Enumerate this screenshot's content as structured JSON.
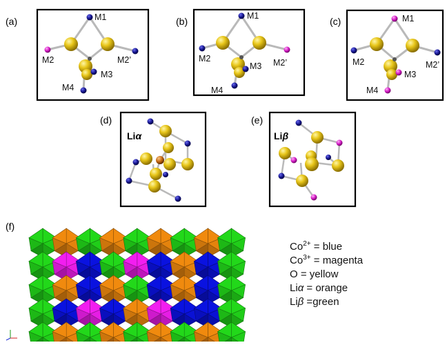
{
  "panels": {
    "a": {
      "tag": "(a)",
      "labels": {
        "m1": "M1",
        "m2": "M2",
        "m2p": "M2’",
        "m3": "M3",
        "m4": "M4"
      }
    },
    "b": {
      "tag": "(b)",
      "labels": {
        "m1": "M1",
        "m2": "M2",
        "m2p": "M2’",
        "m3": "M3",
        "m4": "M4"
      }
    },
    "c": {
      "tag": "(c)",
      "labels": {
        "m1": "M1",
        "m2": "M2",
        "m2p": "M2’",
        "m3": "M3",
        "m4": "M4"
      }
    },
    "d": {
      "tag": "(d)",
      "title_prefix": "Li",
      "title_greek": "α"
    },
    "e": {
      "tag": "(e)",
      "title_prefix": "Li",
      "title_greek": "β"
    },
    "f": {
      "tag": "(f)"
    }
  },
  "legend": [
    {
      "base": "Co",
      "sup": "2+",
      "rest": " = blue"
    },
    {
      "base": "Co",
      "sup": "3+",
      "rest": " = magenta"
    },
    {
      "base": "O",
      "sup": "",
      "rest": " = yellow"
    },
    {
      "base": "Li",
      "sup": "",
      "greek": "α",
      "rest": " = orange"
    },
    {
      "base": "Li",
      "sup": "",
      "greek": "β",
      "rest": " =green"
    }
  ],
  "colors": {
    "co2": "#14148c",
    "co3": "#d61fc8",
    "oxygen": "#e2c20e",
    "li_alpha": "#c86a14",
    "poly_green": "#22d81a",
    "poly_blue": "#0a12e0",
    "poly_magenta": "#f21ef0",
    "poly_orange": "#f08a0e",
    "bond": "#b9b9b9"
  }
}
